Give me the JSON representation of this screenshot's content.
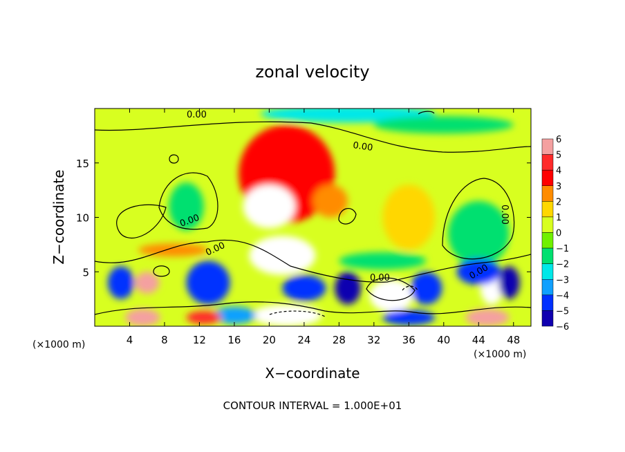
{
  "chart_data": {
    "type": "heatmap",
    "title": "zonal velocity",
    "xlabel": "X−coordinate",
    "ylabel": "Z−coordinate",
    "x_unit_note_left": "(×1000 m)",
    "x_unit_note_right": "(×1000 m)",
    "footer": "CONTOUR INTERVAL = 1.000E+01",
    "xlim": [
      0,
      50
    ],
    "ylim": [
      0,
      20
    ],
    "x_ticks": [
      4,
      8,
      12,
      16,
      20,
      24,
      28,
      32,
      36,
      40,
      44,
      48
    ],
    "x_tick_labels": [
      "4",
      "8",
      "12",
      "16",
      "20",
      "24",
      "28",
      "32",
      "36",
      "40",
      "44",
      "48"
    ],
    "y_ticks": [
      5,
      10,
      15
    ],
    "y_tick_labels": [
      "5",
      "10",
      "15"
    ],
    "colorbar": {
      "range": [
        -6,
        6
      ],
      "levels": [
        6,
        5,
        4,
        3,
        2,
        1,
        0,
        -1,
        -2,
        -3,
        -4,
        -5,
        -6
      ],
      "labels": [
        "6",
        "5",
        "4",
        "3",
        "2",
        "1",
        "0",
        "−1",
        "−2",
        "−3",
        "−4",
        "−5",
        "−6"
      ],
      "colors": [
        "#f4a0a0",
        "#ff2a2a",
        "#ff0000",
        "#ff8c00",
        "#ffd700",
        "#d8ff20",
        "#70f000",
        "#00e070",
        "#00e8e8",
        "#10a0ff",
        "#0030ff",
        "#1000b0",
        "#8000c0"
      ]
    },
    "contour_labels": [
      "0.00",
      "0.00",
      "0.00",
      "0.00",
      "0.00",
      "0.00",
      "0.00"
    ],
    "background_value": 0.6,
    "features": [
      {
        "x": 22,
        "y": 14,
        "rx": 5.5,
        "ry": 4.5,
        "value": 3.2
      },
      {
        "x": 20,
        "y": 11,
        "rx": 3,
        "ry": 2,
        "value": 6.5
      },
      {
        "x": 21.5,
        "y": 6.5,
        "rx": 3.8,
        "ry": 1.8,
        "value": 6.5
      },
      {
        "x": 27,
        "y": 11.5,
        "rx": 2,
        "ry": 1.5,
        "value": 2.5
      },
      {
        "x": 29,
        "y": 19.5,
        "rx": 10,
        "ry": 0.8,
        "value": -2.5
      },
      {
        "x": 40,
        "y": 18.5,
        "rx": 8,
        "ry": 0.8,
        "value": -1.5
      },
      {
        "x": 10.5,
        "y": 11,
        "rx": 2,
        "ry": 2.2,
        "value": -1.5
      },
      {
        "x": 44,
        "y": 8.5,
        "rx": 3.5,
        "ry": 3,
        "value": -1.8
      },
      {
        "x": 36,
        "y": 10,
        "rx": 3,
        "ry": 3,
        "value": 1.5
      },
      {
        "x": 6,
        "y": 4,
        "rx": 1.4,
        "ry": 1,
        "value": 5.5
      },
      {
        "x": 13,
        "y": 4,
        "rx": 2.5,
        "ry": 2,
        "value": -4.5
      },
      {
        "x": 3,
        "y": 4,
        "rx": 1.5,
        "ry": 1.5,
        "value": -4
      },
      {
        "x": 24,
        "y": 3.5,
        "rx": 2.5,
        "ry": 1.2,
        "value": -4
      },
      {
        "x": 22,
        "y": 1,
        "rx": 4,
        "ry": 1,
        "value": 6.5
      },
      {
        "x": 34,
        "y": 2.8,
        "rx": 2.5,
        "ry": 1.5,
        "value": 6.5
      },
      {
        "x": 29,
        "y": 3.5,
        "rx": 1.5,
        "ry": 1.5,
        "value": -5
      },
      {
        "x": 38,
        "y": 3.5,
        "rx": 1.8,
        "ry": 1.5,
        "value": -4
      },
      {
        "x": 45.5,
        "y": 3.5,
        "rx": 1.3,
        "ry": 1.5,
        "value": 6.5
      },
      {
        "x": 44,
        "y": 5,
        "rx": 2.5,
        "ry": 1.2,
        "value": -4
      },
      {
        "x": 47.5,
        "y": 4,
        "rx": 1.2,
        "ry": 1.5,
        "value": -5
      },
      {
        "x": 16,
        "y": 1,
        "rx": 2.5,
        "ry": 0.8,
        "value": -3.5
      },
      {
        "x": 5.5,
        "y": 0.8,
        "rx": 2,
        "ry": 0.8,
        "value": 6
      },
      {
        "x": 45,
        "y": 0.8,
        "rx": 2.5,
        "ry": 0.8,
        "value": 6
      },
      {
        "x": 12.5,
        "y": 0.8,
        "rx": 2,
        "ry": 0.6,
        "value": 5
      },
      {
        "x": 36,
        "y": 0.8,
        "rx": 3,
        "ry": 0.7,
        "value": -4
      },
      {
        "x": 9,
        "y": 7,
        "rx": 4,
        "ry": 0.6,
        "value": 3
      },
      {
        "x": 33,
        "y": 6,
        "rx": 5,
        "ry": 0.8,
        "value": -1.5
      }
    ]
  }
}
